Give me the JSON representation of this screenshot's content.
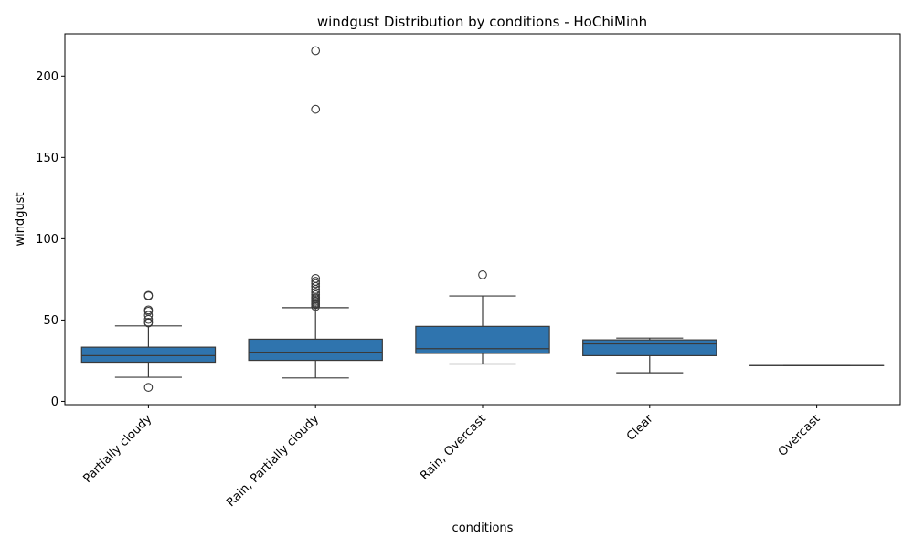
{
  "chart_data": {
    "type": "box",
    "title": "windgust Distribution by conditions - HoChiMinh",
    "xlabel": "conditions",
    "ylabel": "windgust",
    "ylim": [
      -2,
      226
    ],
    "yticks": [
      0,
      50,
      100,
      150,
      200
    ],
    "categories": [
      "Partially cloudy",
      "Rain, Partially cloudy",
      "Rain, Overcast",
      "Clear",
      "Overcast"
    ],
    "box_color": "#2f74ae",
    "line_color": "#3a3a3a",
    "boxes": [
      {
        "category": "Partially cloudy",
        "whisker_low": 14.8,
        "q1": 24.1,
        "median": 28.1,
        "q3": 33.3,
        "whisker_high": 46.4,
        "fliers": [
          8.6,
          48.2,
          48.6,
          50.4,
          52.9,
          55.4,
          56.2,
          64.8,
          65.2
        ]
      },
      {
        "category": "Rain, Partially cloudy",
        "whisker_low": 14.4,
        "q1": 25.2,
        "median": 30.2,
        "q3": 38.2,
        "whisker_high": 57.6,
        "fliers": [
          58.3,
          59.4,
          60.1,
          60.8,
          61.6,
          62.6,
          63.4,
          64.1,
          65.5,
          67.0,
          68.8,
          70.6,
          72.4,
          73.8,
          75.6,
          179.6,
          215.6
        ]
      },
      {
        "category": "Rain, Overcast",
        "whisker_low": 23.0,
        "q1": 29.5,
        "median": 32.4,
        "q3": 46.1,
        "whisker_high": 64.8,
        "fliers": [
          77.8
        ]
      },
      {
        "category": "Clear",
        "whisker_low": 17.6,
        "q1": 28.1,
        "median": 35.3,
        "q3": 37.8,
        "whisker_high": 38.9,
        "fliers": []
      },
      {
        "category": "Overcast",
        "whisker_low": 22.0,
        "q1": 22.0,
        "median": 22.0,
        "q3": 22.0,
        "whisker_high": 22.0,
        "fliers": []
      }
    ]
  }
}
